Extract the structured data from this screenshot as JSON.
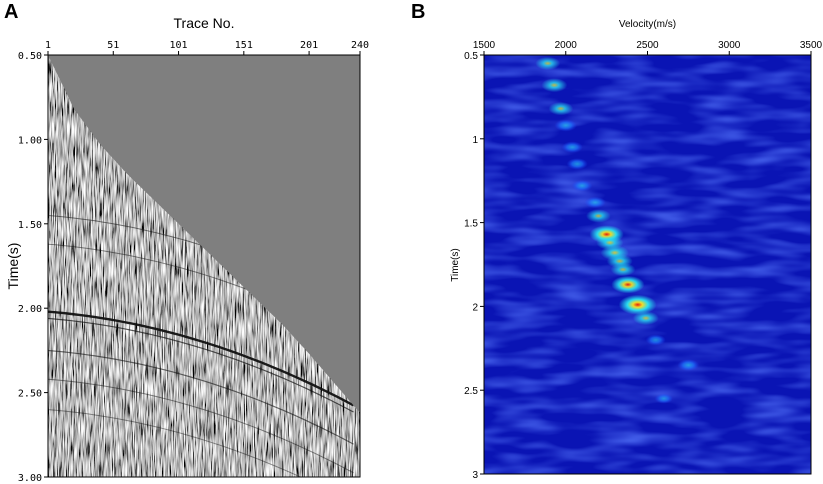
{
  "chart_data": [
    {
      "panel": "A",
      "type": "heatmap",
      "title": "",
      "xlabel": "Trace No.",
      "ylabel": "Time(s)",
      "x_ticks": [
        "1",
        "51",
        "101",
        "151",
        "201",
        "240"
      ],
      "x_tick_values": [
        1,
        51,
        101,
        151,
        201,
        240
      ],
      "y_ticks": [
        "0.50",
        "1.00",
        "1.50",
        "2.00",
        "2.50",
        "3.00"
      ],
      "y_tick_values": [
        0.5,
        1.0,
        1.5,
        2.0,
        2.5,
        3.0
      ],
      "xlim": [
        1,
        240
      ],
      "ylim": [
        0.5,
        3.0
      ],
      "x_axis_position": "top",
      "first_break_curve": {
        "trace": [
          1,
          21,
          41,
          61,
          81,
          101,
          121,
          141,
          161,
          181,
          201,
          221,
          240
        ],
        "time": [
          0.5,
          0.82,
          1.03,
          1.2,
          1.35,
          1.5,
          1.65,
          1.8,
          1.95,
          2.1,
          2.27,
          2.45,
          2.62
        ]
      },
      "strong_reflection_time_at_trace1": 2.02,
      "colors": {
        "background": "#7f7f7f",
        "dark": "#111111",
        "light": "#f2f2f2"
      }
    },
    {
      "panel": "B",
      "type": "heatmap",
      "title": "",
      "xlabel": "Velocity(m/s)",
      "ylabel": "Time(s)",
      "x_ticks": [
        "1500",
        "2000",
        "2500",
        "3000",
        "3500"
      ],
      "x_tick_values": [
        1500,
        2000,
        2500,
        3000,
        3500
      ],
      "y_ticks": [
        "0.5",
        "1",
        "1.5",
        "2",
        "2.5",
        "3"
      ],
      "y_tick_values": [
        0.5,
        1.0,
        1.5,
        2.0,
        2.5,
        3.0
      ],
      "xlim": [
        1500,
        3500
      ],
      "ylim": [
        0.5,
        3.0
      ],
      "x_axis_position": "top",
      "energy_peaks": [
        {
          "velocity": 1890,
          "time": 0.55,
          "energy": 0.45
        },
        {
          "velocity": 1930,
          "time": 0.68,
          "energy": 0.5
        },
        {
          "velocity": 1970,
          "time": 0.82,
          "energy": 0.45
        },
        {
          "velocity": 2000,
          "time": 0.92,
          "energy": 0.35
        },
        {
          "velocity": 2040,
          "time": 1.05,
          "energy": 0.3
        },
        {
          "velocity": 2070,
          "time": 1.15,
          "energy": 0.3
        },
        {
          "velocity": 2100,
          "time": 1.28,
          "energy": 0.28
        },
        {
          "velocity": 2180,
          "time": 1.38,
          "energy": 0.3
        },
        {
          "velocity": 2200,
          "time": 1.46,
          "energy": 0.45
        },
        {
          "velocity": 2250,
          "time": 1.57,
          "energy": 0.85
        },
        {
          "velocity": 2270,
          "time": 1.62,
          "energy": 0.55
        },
        {
          "velocity": 2300,
          "time": 1.68,
          "energy": 0.6
        },
        {
          "velocity": 2330,
          "time": 1.73,
          "energy": 0.5
        },
        {
          "velocity": 2350,
          "time": 1.78,
          "energy": 0.45
        },
        {
          "velocity": 2380,
          "time": 1.87,
          "energy": 0.8
        },
        {
          "velocity": 2440,
          "time": 1.99,
          "energy": 1.0
        },
        {
          "velocity": 2490,
          "time": 2.07,
          "energy": 0.5
        },
        {
          "velocity": 2550,
          "time": 2.2,
          "energy": 0.25
        },
        {
          "velocity": 2750,
          "time": 2.35,
          "energy": 0.32
        },
        {
          "velocity": 2600,
          "time": 2.55,
          "energy": 0.18
        }
      ],
      "colors": {
        "background": "#0a14b4",
        "low": "#1e46ff",
        "mid": "#28dcf0",
        "midhigh": "#f0dc28",
        "high": "#e61e0a"
      }
    }
  ]
}
